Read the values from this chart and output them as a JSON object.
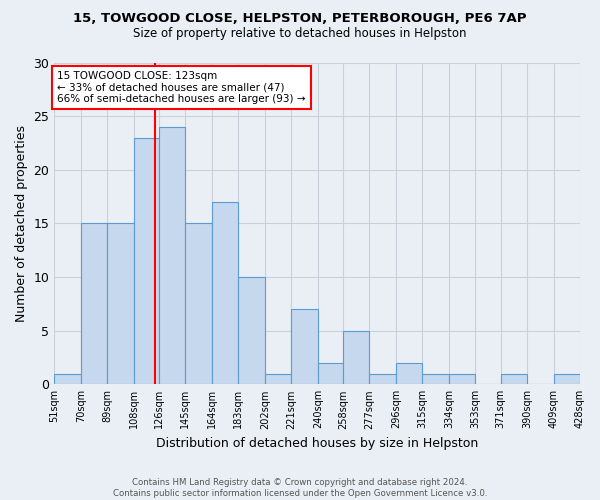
{
  "title1": "15, TOWGOOD CLOSE, HELPSTON, PETERBOROUGH, PE6 7AP",
  "title2": "Size of property relative to detached houses in Helpston",
  "xlabel": "Distribution of detached houses by size in Helpston",
  "ylabel": "Number of detached properties",
  "footer1": "Contains HM Land Registry data © Crown copyright and database right 2024.",
  "footer2": "Contains public sector information licensed under the Open Government Licence v3.0.",
  "bins": [
    51,
    70,
    89,
    108,
    126,
    145,
    164,
    183,
    202,
    221,
    240,
    258,
    277,
    296,
    315,
    334,
    353,
    371,
    390,
    409,
    428
  ],
  "bar_heights": [
    1,
    15,
    15,
    23,
    24,
    15,
    17,
    10,
    1,
    7,
    2,
    5,
    1,
    2,
    1,
    1,
    0,
    1,
    0,
    1
  ],
  "bar_color": "#c5d8ed",
  "bar_edgecolor": "#5b9bd5",
  "red_line_x": 123,
  "annotation_line1": "15 TOWGOOD CLOSE: 123sqm",
  "annotation_line2": "← 33% of detached houses are smaller (47)",
  "annotation_line3": "66% of semi-detached houses are larger (93) →",
  "ylim": [
    0,
    30
  ],
  "yticks": [
    0,
    5,
    10,
    15,
    20,
    25,
    30
  ],
  "grid_color": "#c8d0dc",
  "background_color": "#eaeff5",
  "axes_background": "#eaeff5"
}
